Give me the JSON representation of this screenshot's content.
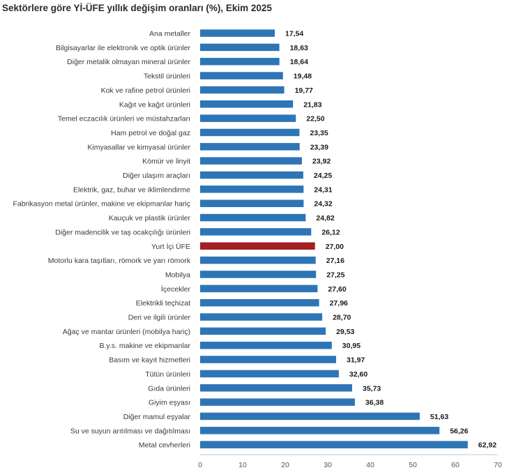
{
  "chart_data": {
    "type": "bar",
    "orientation": "horizontal",
    "title": "Sektörlere göre Yİ-ÜFE yıllık değişim oranları (%), Ekim 2025",
    "xlim": [
      0,
      70
    ],
    "xticks": [
      0,
      10,
      20,
      30,
      40,
      50,
      60,
      70
    ],
    "grid": false,
    "colors": {
      "default": "#2e75b6",
      "highlight": "#a31f24"
    },
    "categories": [
      "Ana metaller",
      "Bilgisayarlar ile elektronik ve optik ürünler",
      "Diğer metalik olmayan mineral ürünler",
      "Tekstil ürünleri",
      "Kok ve rafine petrol ürünleri",
      "Kağıt ve kağıt ürünleri",
      "Temel eczacılık ürünleri ve müstahzarları",
      "Ham petrol ve doğal gaz",
      "Kimyasallar ve kimyasal ürünler",
      "Kömür ve linyit",
      "Diğer ulaşım araçları",
      "Elektrik, gaz, buhar ve iklimlendirme",
      "Fabrikasyon metal ürünler, makine ve ekipmanlar hariç",
      "Kauçuk ve plastik ürünler",
      "Diğer madencilik ve taş ocakçılığı ürünleri",
      "Yurt İçi ÜFE",
      "Motorlu kara taşıtları, römork ve yarı römork",
      "Mobilya",
      "İçecekler",
      "Elektrikli teçhizat",
      "Deri ve ilgili ürünler",
      "Ağaç ve mantar ürünleri (mobilya hariç)",
      "B.y.s. makine ve ekipmanlar",
      "Basım ve kayıt hizmetleri",
      "Tütün ürünleri",
      "Gıda ürünleri",
      "Giyim eşyası",
      "Diğer mamul eşyalar",
      "Su ve suyun arıtılması ve dağıtılması",
      "Metal cevherleri"
    ],
    "values": [
      17.54,
      18.63,
      18.64,
      19.48,
      19.77,
      21.83,
      22.5,
      23.35,
      23.39,
      23.92,
      24.25,
      24.31,
      24.32,
      24.82,
      26.12,
      27.0,
      27.16,
      27.25,
      27.6,
      27.96,
      28.7,
      29.53,
      30.95,
      31.97,
      32.6,
      35.73,
      36.38,
      51.63,
      56.26,
      62.92
    ],
    "value_labels": [
      "17,54",
      "18,63",
      "18,64",
      "19,48",
      "19,77",
      "21,83",
      "22,50",
      "23,35",
      "23,39",
      "23,92",
      "24,25",
      "24,31",
      "24,32",
      "24,82",
      "26,12",
      "27,00",
      "27,16",
      "27,25",
      "27,60",
      "27,96",
      "28,70",
      "29,53",
      "30,95",
      "31,97",
      "32,60",
      "35,73",
      "36,38",
      "51,63",
      "56,26",
      "62,92"
    ],
    "highlight_index": 15
  }
}
